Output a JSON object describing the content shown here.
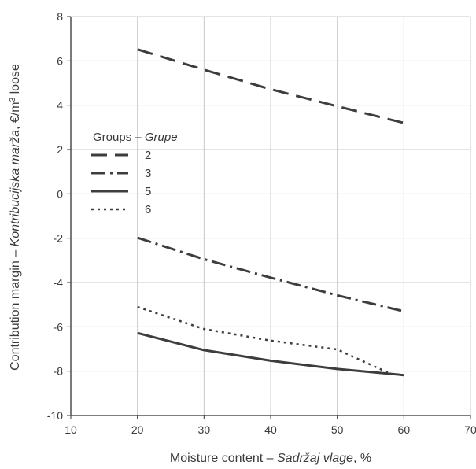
{
  "chart_data": {
    "type": "line",
    "x": [
      20,
      30,
      40,
      50,
      60
    ],
    "xlim": [
      10,
      70
    ],
    "ylim": [
      -10,
      8
    ],
    "xticks": [
      10,
      20,
      30,
      40,
      50,
      60,
      70
    ],
    "yticks": [
      -10,
      -8,
      -6,
      -4,
      -2,
      0,
      2,
      4,
      6,
      8
    ],
    "grid": true,
    "xlabel": {
      "prefix": "Moisture content – ",
      "italic": "Sadržaj vlage",
      "suffix": ", %"
    },
    "ylabel": {
      "prefix": "Contribution margin – ",
      "italic": "Kontribucijska marža",
      "suffix": ", €/m",
      "superscript": "3",
      "tail": " loose"
    },
    "legend": {
      "title_prefix": "Groups – ",
      "title_italic": "Grupe",
      "placement": "upper-left"
    },
    "series": [
      {
        "name": "2",
        "style": "dashed",
        "color": "#3d3d3d",
        "values": [
          6.52,
          5.6,
          4.72,
          3.95,
          3.2
        ]
      },
      {
        "name": "3",
        "style": "dashdot",
        "color": "#3d3d3d",
        "values": [
          -1.98,
          -2.95,
          -3.78,
          -4.58,
          -5.3
        ]
      },
      {
        "name": "5",
        "style": "solid",
        "color": "#3d3d3d",
        "values": [
          -6.28,
          -7.05,
          -7.53,
          -7.9,
          -8.18
        ]
      },
      {
        "name": "6",
        "style": "dotted",
        "color": "#3d3d3d",
        "x": [
          20,
          30,
          40,
          50,
          58
        ],
        "values": [
          -5.1,
          -6.1,
          -6.62,
          -7.02,
          -8.12
        ]
      }
    ]
  }
}
